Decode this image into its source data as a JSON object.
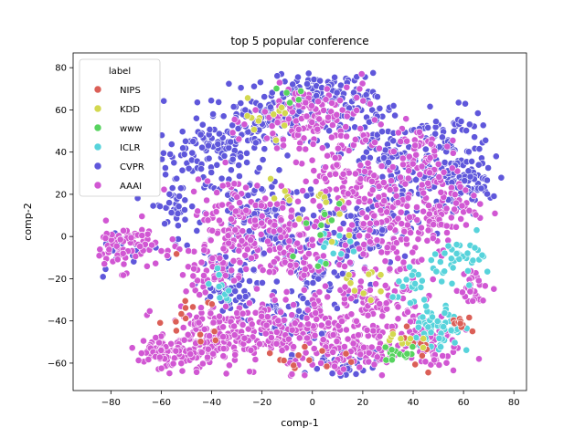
{
  "chart_data": {
    "type": "scatter",
    "title": "top 5 popular conference",
    "xlabel": "comp-1",
    "ylabel": "comp-2",
    "xlim": [
      -95,
      85
    ],
    "ylim": [
      -73,
      87
    ],
    "xticks": [
      -80,
      -60,
      -40,
      -20,
      0,
      20,
      40,
      60,
      80
    ],
    "yticks": [
      -60,
      -40,
      -20,
      0,
      20,
      40,
      60,
      80
    ],
    "grid": false,
    "legend": {
      "title": "label",
      "placement": "top-left",
      "entries": [
        {
          "name": "NIPS",
          "color": "#db5f57"
        },
        {
          "name": "KDD",
          "color": "#d3d84f"
        },
        {
          "name": "www",
          "color": "#57d35f"
        },
        {
          "name": "ICLR",
          "color": "#57d3db"
        },
        {
          "name": "CVPR",
          "color": "#5f57db"
        },
        {
          "name": "AAAI",
          "color": "#d157d3"
        }
      ]
    },
    "series": [
      {
        "name": "CVPR",
        "color": "#5f57db",
        "regions": [
          [
            -40,
            40,
            12,
            8,
            90
          ],
          [
            -20,
            55,
            14,
            10,
            120
          ],
          [
            0,
            70,
            10,
            6,
            70
          ],
          [
            15,
            60,
            12,
            10,
            80
          ],
          [
            30,
            40,
            12,
            10,
            70
          ],
          [
            55,
            40,
            12,
            12,
            110
          ],
          [
            60,
            25,
            8,
            8,
            60
          ],
          [
            -20,
            10,
            15,
            15,
            130
          ],
          [
            -35,
            -25,
            8,
            10,
            60
          ],
          [
            0,
            -15,
            15,
            15,
            90
          ],
          [
            -10,
            -40,
            8,
            8,
            50
          ],
          [
            10,
            -60,
            12,
            4,
            40
          ],
          [
            -55,
            15,
            6,
            10,
            40
          ],
          [
            20,
            0,
            12,
            10,
            60
          ],
          [
            35,
            20,
            10,
            10,
            60
          ],
          [
            -75,
            -5,
            8,
            6,
            25
          ]
        ]
      },
      {
        "name": "AAAI",
        "color": "#d157d3",
        "regions": [
          [
            -75,
            -5,
            8,
            7,
            80
          ],
          [
            0,
            55,
            15,
            12,
            140
          ],
          [
            -30,
            10,
            12,
            12,
            110
          ],
          [
            -45,
            -50,
            10,
            10,
            150
          ],
          [
            -20,
            -45,
            12,
            10,
            120
          ],
          [
            5,
            -45,
            10,
            12,
            100
          ],
          [
            25,
            -30,
            12,
            12,
            100
          ],
          [
            30,
            5,
            12,
            14,
            130
          ],
          [
            50,
            15,
            10,
            12,
            90
          ],
          [
            45,
            -50,
            8,
            10,
            80
          ],
          [
            -10,
            -5,
            12,
            14,
            120
          ],
          [
            15,
            30,
            10,
            10,
            80
          ],
          [
            65,
            -25,
            5,
            5,
            30
          ],
          [
            -40,
            -15,
            8,
            8,
            60
          ],
          [
            40,
            40,
            8,
            8,
            50
          ],
          [
            -60,
            -55,
            6,
            5,
            50
          ],
          [
            20,
            -55,
            10,
            5,
            60
          ]
        ]
      },
      {
        "name": "ICLR",
        "color": "#57d3db",
        "regions": [
          [
            50,
            -45,
            6,
            8,
            60
          ],
          [
            60,
            -10,
            8,
            6,
            40
          ],
          [
            40,
            -25,
            5,
            5,
            20
          ],
          [
            -35,
            -25,
            5,
            5,
            10
          ],
          [
            10,
            -5,
            5,
            5,
            10
          ]
        ]
      },
      {
        "name": "NIPS",
        "color": "#db5f57",
        "regions": [
          [
            60,
            -42,
            3,
            3,
            10
          ],
          [
            -50,
            -40,
            12,
            12,
            15
          ],
          [
            0,
            -58,
            12,
            4,
            12
          ],
          [
            40,
            -55,
            8,
            6,
            12
          ]
        ]
      },
      {
        "name": "KDD",
        "color": "#d3d84f",
        "regions": [
          [
            -20,
            55,
            10,
            8,
            12
          ],
          [
            20,
            -25,
            10,
            8,
            10
          ],
          [
            35,
            -50,
            5,
            5,
            10
          ],
          [
            0,
            15,
            12,
            12,
            15
          ]
        ]
      },
      {
        "name": "www",
        "color": "#57d35f",
        "regions": [
          [
            35,
            -55,
            5,
            3,
            15
          ],
          [
            0,
            0,
            10,
            10,
            10
          ],
          [
            -10,
            65,
            5,
            3,
            5
          ]
        ]
      }
    ]
  }
}
